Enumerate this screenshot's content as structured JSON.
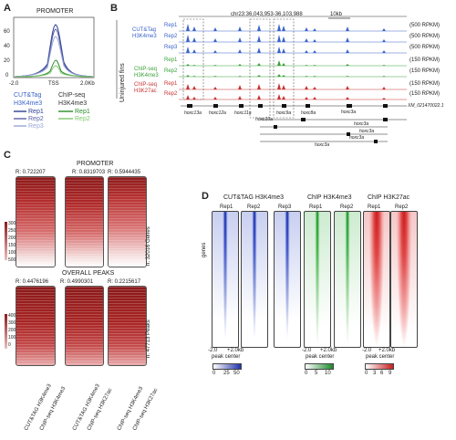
{
  "panel_labels": [
    "A",
    "B",
    "C",
    "D"
  ],
  "panelA": {
    "title": "PROMOTER",
    "yticks": [
      "60",
      "40",
      "20",
      "0"
    ],
    "xticks": [
      "-2.0",
      "TSS",
      "2.0Kb"
    ],
    "legend_cut": {
      "title1": "CUT&Tag",
      "title2": "H3K4me3",
      "reps": [
        "Rep1",
        "Rep2",
        "Rep3"
      ]
    },
    "legend_chip": {
      "title1": "ChIP-seq",
      "title2": "H3K4me3",
      "reps": [
        "Rep1",
        "Rep2"
      ]
    }
  },
  "panelB": {
    "coord": "chr23:36,043,953-36,103,988",
    "scale": "10kb",
    "side_label": "Uninjured fins",
    "groups": [
      {
        "title1": "CUT&Tag",
        "title2": "H3K4me3",
        "color": "#3a64c8"
      },
      {
        "title1": "ChIP-seq",
        "title2": "H3K4me3",
        "color": "#3aa03a"
      },
      {
        "title1": "ChIP-seq",
        "title2": "H3K27ac",
        "color": "#c83232"
      }
    ],
    "tracks": [
      {
        "rep": "Rep1",
        "range": "(500 RPKM)",
        "color": "#3a64c8"
      },
      {
        "rep": "Rep2",
        "range": "(500 RPKM)",
        "color": "#3a64c8"
      },
      {
        "rep": "Rep3",
        "range": "(500 RPKM)",
        "color": "#3a64c8"
      },
      {
        "rep": "Rep1",
        "range": "(150 RPKM)",
        "color": "#3aa03a"
      },
      {
        "rep": "Rep2",
        "range": "(150 RPKM)",
        "color": "#3aa03a"
      },
      {
        "rep": "Rep1",
        "range": "(150 RPKM)",
        "color": "#c83232"
      },
      {
        "rep": "Rep2",
        "range": "(150 RPKM)",
        "color": "#c83232"
      }
    ],
    "genes": [
      "hoxc13a",
      "hoxc12a",
      "hoxc11a",
      "hoxc10a",
      "hoxc9a",
      "hoxc8a",
      "hoxc3a",
      "hoxc3a",
      "hoxc3a",
      "hoxc3a",
      "hoxc3a",
      "XM_021470022.1"
    ]
  },
  "panelC": {
    "promoter_title": "PROMOTER",
    "promoter_r": [
      "R: 0.722207",
      "R: 0.8319703",
      "R: 0.5944435"
    ],
    "promoter_scale": [
      "30000",
      "25000",
      "20000",
      "15000",
      "10000",
      "5000"
    ],
    "promoter_n": "n: 32016 Genes",
    "peaks_title": "OVERALL PEAKS",
    "peaks_r": [
      "R: 0.4476196",
      "R: 0.4990301",
      "R: 0.2215617"
    ],
    "peaks_scale": [
      "40000",
      "30000",
      "20000",
      "10000",
      "0"
    ],
    "peaks_n": "n: 47713 Peaks",
    "xlabels": [
      "CUT&TAG H3K4me3",
      "ChIP-seq H3K4me3",
      "CUT&TAG H3K4me3",
      "ChIP-seq H3K27ac",
      "ChIP-seq H3K4me3",
      "ChIP-seq H3K27ac"
    ]
  },
  "panelD": {
    "groups": [
      "CUT&TAG H3K4me3",
      "ChIP H3K4me3",
      "ChIP H3K27ac"
    ],
    "reps": [
      "Rep1",
      "Rep2",
      "Rep3",
      "Rep1",
      "Rep2",
      "Rep1",
      "Rep2"
    ],
    "ylabel": "genes",
    "axis1": {
      "left": "-2.0",
      "right": "+2.0kb",
      "sub": "peak center"
    },
    "axis2": {
      "left": "-2.0",
      "right": "+2.0kb",
      "sub": "peak center"
    },
    "axis3": {
      "left": "-2.0",
      "right": "+2.0kb",
      "sub": "peak center"
    },
    "scale1": [
      "0",
      "25",
      "50"
    ],
    "scale2": [
      "0",
      "5",
      "10"
    ],
    "scale3": [
      "0",
      "3",
      "6",
      "9"
    ]
  }
}
